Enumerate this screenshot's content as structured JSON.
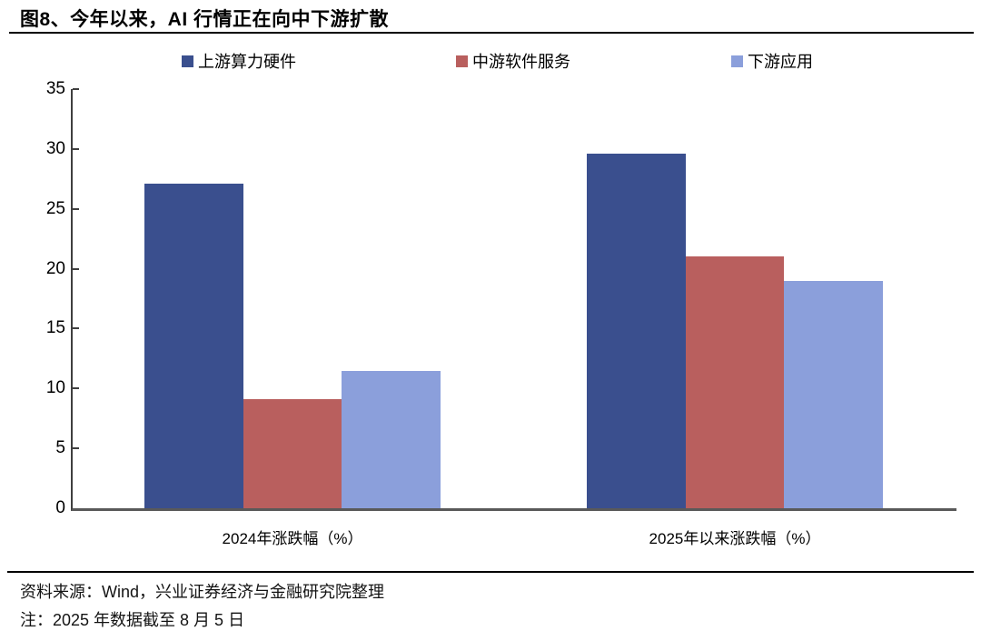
{
  "title": "图8、今年以来，AI 行情正在向中下游扩散",
  "footer": {
    "source": "资料来源：Wind，兴业证券经济与金融研究院整理",
    "note": "注：2025 年数据截至 8 月 5 日"
  },
  "chart_data": {
    "type": "bar",
    "categories": [
      "2024年涨跌幅（%）",
      "2025年以来涨跌幅（%）"
    ],
    "series": [
      {
        "name": "上游算力硬件",
        "color": "#3A4F8E",
        "values": [
          27.1,
          29.6
        ]
      },
      {
        "name": "中游软件服务",
        "color": "#B95F5E",
        "values": [
          9.1,
          21.0
        ]
      },
      {
        "name": "下游应用",
        "color": "#8B9FDB",
        "values": [
          11.5,
          19.0
        ]
      }
    ],
    "title": "图8、今年以来，AI 行情正在向中下游扩散",
    "xlabel": "",
    "ylabel": "",
    "ylim": [
      0,
      35
    ],
    "ytick_step": 5,
    "grid": false,
    "legend_position": "top",
    "axis_color": "#3f3f3f",
    "baseline_color": "#595959"
  }
}
